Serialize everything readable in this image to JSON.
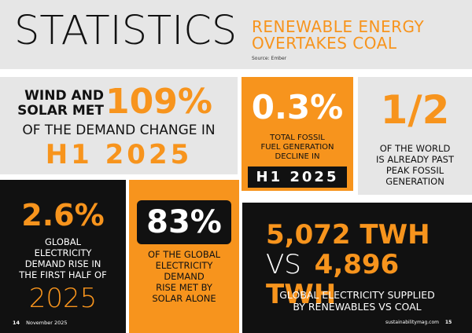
{
  "header": {
    "title": "STATISTICS",
    "subtitle_line1": "RENEWABLE ENERGY",
    "subtitle_line2": "OVERTAKES COAL",
    "source": "Source: Ember"
  },
  "panel_wind_solar": {
    "line1_a": "WIND AND",
    "line1_b": "SOLAR MET",
    "big_value": "109%",
    "line2": "OF THE DEMAND CHANGE IN",
    "period": "H1 2025"
  },
  "panel_fossil_decline": {
    "big_value": "0.3%",
    "label_line1": "TOTAL FOSSIL",
    "label_line2": "FUEL GENERATION",
    "label_line3": "DECLINE IN",
    "period": "H1 2025"
  },
  "panel_half_world": {
    "big_value": "1/2",
    "label_line1": "OF THE WORLD",
    "label_line2": "IS ALREADY PAST",
    "label_line3": "PEAK FOSSIL",
    "label_line4": "GENERATION"
  },
  "panel_demand_rise": {
    "big_value": "2.6%",
    "label_line1": "GLOBAL",
    "label_line2": "ELECTRICITY",
    "label_line3": "DEMAND RISE IN",
    "label_line4": "THE FIRST HALF OF",
    "year": "2025"
  },
  "panel_solar_alone": {
    "big_value": "83%",
    "label_line1": "OF THE GLOBAL",
    "label_line2": "ELECTRICITY",
    "label_line3": "DEMAND",
    "label_line4": "RISE MET BY",
    "label_line5": "SOLAR ALONE"
  },
  "panel_renewables_vs_coal": {
    "value_a": "5,072 TWH",
    "vs": "VS",
    "value_b": "4,896 TWH",
    "label_line1": "GLOBAL ELECTRICITY SUPPLIED",
    "label_line2": "BY RENEWABLES VS COAL"
  },
  "footer": {
    "page_left": "14",
    "issue": "November 2025",
    "site": "sustainabilitymag.com",
    "page_right": "15"
  },
  "colors": {
    "accent": "#f7941d",
    "dark": "#111111",
    "light_grey": "#e6e6e6"
  }
}
